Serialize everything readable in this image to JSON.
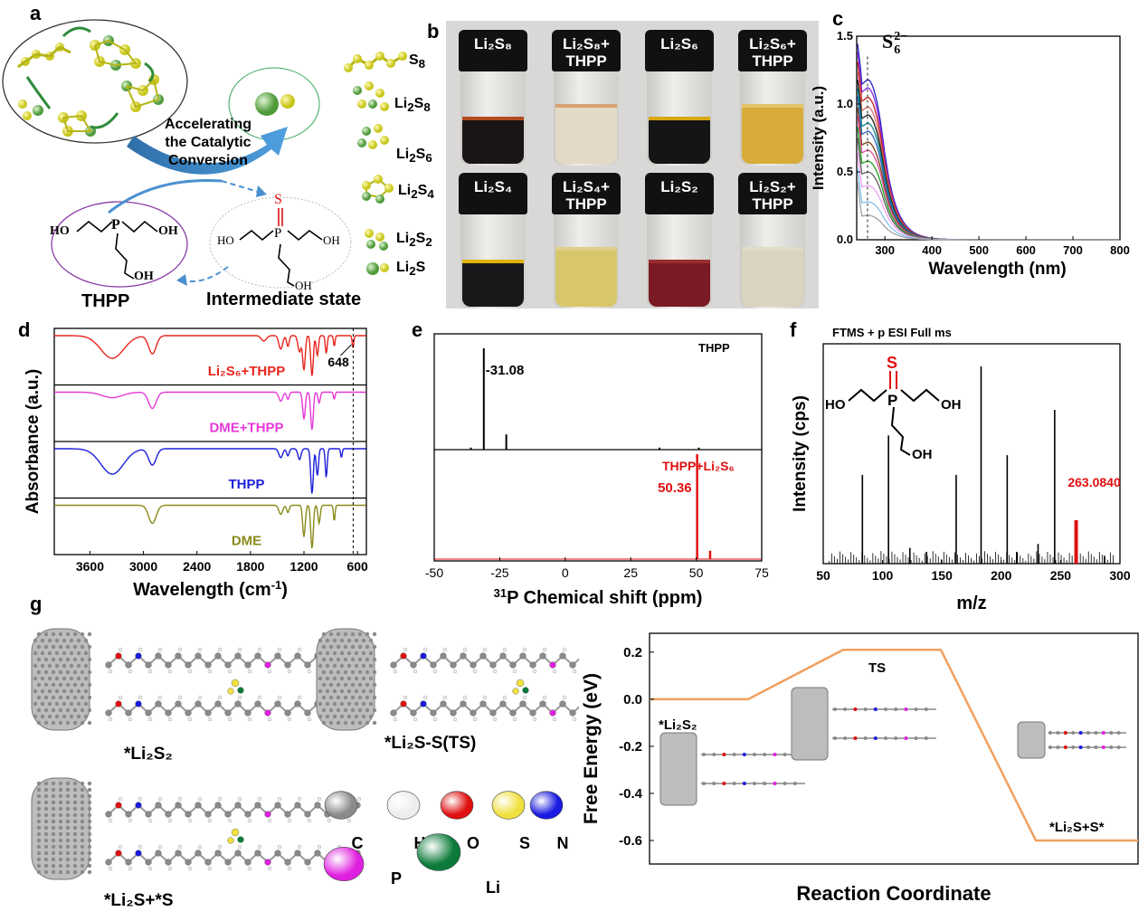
{
  "panels": {
    "a": {
      "letter": "a",
      "center_text": [
        "Accelerating",
        "the Catalytic",
        "Conversion"
      ],
      "thpp_label": "THPP",
      "intermediate_label": "Intermediate state",
      "hetero": {
        "ho": "HO",
        "oh": "OH",
        "p": "P",
        "s": "S"
      },
      "legend": [
        {
          "main": "S",
          "sub": "8",
          "post": ""
        },
        {
          "main": "Li",
          "sub": "2",
          "post": "S",
          "sub2": "8"
        },
        {
          "main": "Li",
          "sub": "2",
          "post": "S",
          "sub2": "6"
        },
        {
          "main": "Li",
          "sub": "2",
          "post": "S",
          "sub2": "4"
        },
        {
          "main": "Li",
          "sub": "2",
          "post": "S",
          "sub2": "2"
        },
        {
          "main": "Li",
          "sub": "2",
          "post": "S",
          "sub2": ""
        }
      ]
    },
    "b": {
      "letter": "b",
      "vials": [
        {
          "line1": "Li₂S₈",
          "line2": "",
          "solution": "#1a1416",
          "top": "#b24a1e"
        },
        {
          "line1": "Li₂S₈+",
          "line2": "THPP",
          "solution": "#e4d9c6",
          "top": "#d7a172"
        },
        {
          "line1": "Li₂S₆",
          "line2": "",
          "solution": "#151516",
          "top": "#d7a60a"
        },
        {
          "line1": "Li₂S₆+",
          "line2": "THPP",
          "solution": "#d7ac3a",
          "top": "#e4c46b"
        },
        {
          "line1": "Li₂S₄",
          "line2": "",
          "solution": "#18181b",
          "top": "#e0b20a"
        },
        {
          "line1": "Li₂S₄+",
          "line2": "THPP",
          "solution": "#d8c76a",
          "top": "#e0cf8a"
        },
        {
          "line1": "Li₂S₂",
          "line2": "",
          "solution": "#7a1a24",
          "top": "#9a2d30"
        },
        {
          "line1": "Li₂S₂+",
          "line2": "THPP",
          "solution": "#d9d4c0",
          "top": "#dfdbc6"
        }
      ]
    },
    "c": {
      "letter": "c",
      "annotation": "S",
      "annotation_sub": "6",
      "annotation_sup": "2−",
      "xlabel": "Wavelength (nm)",
      "ylabel": "Intensity (a.u.)",
      "xticks": [
        "300",
        "400",
        "500",
        "600",
        "700",
        "800"
      ],
      "yticks": [
        "0.0",
        "0.5",
        "1.0",
        "1.5"
      ],
      "colors": [
        "#1f1fbf",
        "#8a2be2",
        "#c02020",
        "#e07070",
        "#1a1a1a",
        "#0b8a8a",
        "#2a60c0",
        "#7a3a10",
        "#e050a0",
        "#20a020",
        "#606060",
        "#f0a0f0",
        "#80c0f0",
        "#a0a0a0"
      ]
    },
    "d": {
      "letter": "d",
      "xlabel": "Wavelength (cm",
      "xlabel_sup": "-1",
      "xlabel_end": ")",
      "ylabel": "Absorbance (a.u.)",
      "xticks": [
        "3600",
        "3000",
        "2400",
        "1800",
        "1200",
        "600"
      ],
      "annotation": "648",
      "traces": [
        {
          "label": "Li₂S₆+THPP",
          "color": "#e8261e"
        },
        {
          "label": "DME+THPP",
          "color": "#e639d9"
        },
        {
          "label": "THPP",
          "color": "#1c1fd9"
        },
        {
          "label": "DME",
          "color": "#8a8a1a"
        }
      ]
    },
    "e": {
      "letter": "e",
      "xlabel": "P Chemical shift (ppm)",
      "xlabel_sup": "31",
      "xticks": [
        "-50",
        "-25",
        "0",
        "25",
        "50",
        "75"
      ],
      "top_label": "THPP",
      "top_peak": "-31.08",
      "bottom_label": "THPP+Li₂S₆",
      "bottom_peak": "50.36"
    },
    "f": {
      "letter": "f",
      "title": "FTMS + p ESI Full ms",
      "xlabel": "m/z",
      "ylabel": "Intensity (cps)",
      "xticks": [
        "50",
        "100",
        "150",
        "200",
        "250",
        "300"
      ],
      "peak_label": "263.0840",
      "hetero": {
        "ho": "HO",
        "oh": "OH",
        "p": "P",
        "s": "S"
      }
    },
    "g": {
      "letter": "g",
      "labels": {
        "li2s2": "*Li₂S₂",
        "ts": "*Li₂S-S(TS)",
        "final": "*Li₂S+*S"
      },
      "atoms": [
        {
          "name": "C",
          "color": "#8a8a8a"
        },
        {
          "name": "H",
          "color": "#eeeeee"
        },
        {
          "name": "O",
          "color": "#e01010"
        },
        {
          "name": "S",
          "color": "#f0e040"
        },
        {
          "name": "N",
          "color": "#1a1ae0"
        },
        {
          "name": "P",
          "color": "#e020e0"
        },
        {
          "name": "Li",
          "color": "#0b7a3a"
        }
      ],
      "energy": {
        "ylabel": "Free Energy (eV)",
        "xlabel": "Reaction Coordinate",
        "yticks": [
          "0.2",
          "0.0",
          "-0.2",
          "-0.4",
          "-0.6"
        ],
        "states": [
          "*Li₂S₂",
          "TS",
          "*Li₂S+S*"
        ]
      }
    }
  },
  "chart_data": [
    {
      "type": "line",
      "title": "",
      "xlabel": "Wavelength (nm)",
      "ylabel": "Intensity (a.u.)",
      "xlim": [
        240,
        800
      ],
      "ylim": [
        0,
        1.5
      ],
      "peak_x": 263,
      "series_peak_values": [
        1.18,
        1.12,
        1.05,
        0.98,
        0.92,
        0.86,
        0.8,
        0.72,
        0.66,
        0.58,
        0.5,
        0.4,
        0.28,
        0.18
      ]
    },
    {
      "type": "line",
      "xlabel": "Wavelength (cm-1)",
      "ylabel": "Absorbance (a.u.)",
      "xlim": [
        4000,
        500
      ],
      "series": [
        {
          "name": "Li₂S₆+THPP"
        },
        {
          "name": "DME+THPP"
        },
        {
          "name": "THPP"
        },
        {
          "name": "DME"
        }
      ],
      "marker_x": 648
    },
    {
      "type": "line",
      "xlabel": "31P Chemical shift (ppm)",
      "xlim": [
        -50,
        75
      ],
      "series": [
        {
          "name": "THPP",
          "peaks": [
            {
              "x": -31.08,
              "y": 1.0
            },
            {
              "x": -22.5,
              "y": 0.15
            },
            {
              "x": -36,
              "y": 0.02
            },
            {
              "x": 36,
              "y": 0.02
            },
            {
              "x": 51,
              "y": 0.02
            }
          ]
        },
        {
          "name": "THPP+Li₂S₆",
          "peaks": [
            {
              "x": 50.36,
              "y": 1.0
            },
            {
              "x": 55.3,
              "y": 0.08
            }
          ]
        }
      ]
    },
    {
      "type": "bar",
      "title": "FTMS + p ESI Full ms",
      "xlabel": "m/z",
      "ylabel": "Intensity (cps)",
      "xlim": [
        50,
        300
      ],
      "x": [
        83,
        105,
        123,
        137,
        162,
        183,
        205,
        213,
        231,
        245,
        263.084,
        287
      ],
      "values": [
        0.45,
        0.65,
        0.08,
        0.06,
        0.45,
        1.0,
        0.55,
        0.06,
        0.1,
        0.78,
        0.22,
        0.04
      ]
    },
    {
      "type": "line",
      "xlabel": "Reaction Coordinate",
      "ylabel": "Free Energy (eV)",
      "ylim": [
        -0.7,
        0.28
      ],
      "categories": [
        "*Li₂S₂",
        "TS",
        "*Li₂S+S*"
      ],
      "values": [
        0.0,
        0.21,
        -0.6
      ]
    }
  ]
}
